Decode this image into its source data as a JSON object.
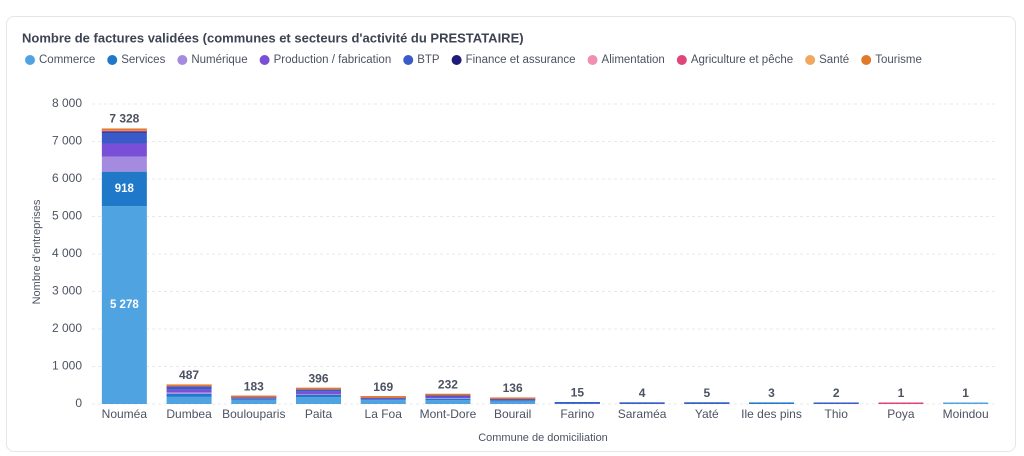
{
  "chart_data": {
    "type": "stacked-bar",
    "title": "Nombre de factures validées (communes et secteurs d'activité du PRESTATAIRE)",
    "xlabel": "Commune de domiciliation",
    "ylabel": "Nombre d'entreprises",
    "categories": [
      "Nouméa",
      "Dumbea",
      "Boulouparis",
      "Paita",
      "La Foa",
      "Mont-Dore",
      "Bourail",
      "Farino",
      "Saraméa",
      "Yaté",
      "Ile des pins",
      "Thio",
      "Poya",
      "Moindou"
    ],
    "series": [
      {
        "name": "Commerce",
        "color": "#4fa3e0",
        "values": [
          5278,
          190,
          110,
          180,
          100,
          100,
          70,
          8,
          2,
          3,
          2,
          1,
          0,
          1
        ],
        "value_labels": [
          "5 278",
          null,
          null,
          null,
          null,
          null,
          null,
          null,
          null,
          null,
          null,
          null,
          null,
          null
        ]
      },
      {
        "name": "Services",
        "color": "#1f78c8",
        "values": [
          918,
          80,
          30,
          60,
          25,
          40,
          25,
          3,
          1,
          1,
          1,
          0,
          0,
          0
        ],
        "value_labels": [
          "918",
          null,
          null,
          null,
          null,
          null,
          null,
          null,
          null,
          null,
          null,
          null,
          null,
          null
        ]
      },
      {
        "name": "Numérique",
        "color": "#a58be0",
        "values": [
          400,
          40,
          10,
          30,
          10,
          20,
          8,
          1,
          0,
          0,
          0,
          0,
          0,
          0
        ]
      },
      {
        "name": "Production / fabrication",
        "color": "#7a4fd8",
        "values": [
          350,
          70,
          15,
          60,
          15,
          35,
          15,
          1,
          0,
          0,
          0,
          0,
          0,
          0
        ]
      },
      {
        "name": "BTP",
        "color": "#3a5bc7",
        "values": [
          290,
          80,
          12,
          50,
          13,
          30,
          12,
          2,
          1,
          1,
          0,
          1,
          0,
          0
        ]
      },
      {
        "name": "Finance et assurance",
        "color": "#1e1b7a",
        "values": [
          30,
          10,
          2,
          6,
          2,
          3,
          2,
          0,
          0,
          0,
          0,
          0,
          0,
          0
        ]
      },
      {
        "name": "Alimentation",
        "color": "#f08fb0",
        "values": [
          10,
          3,
          1,
          2,
          1,
          1,
          1,
          0,
          0,
          0,
          0,
          0,
          0,
          0
        ]
      },
      {
        "name": "Agriculture et pêche",
        "color": "#e0457a",
        "values": [
          12,
          4,
          1,
          3,
          1,
          1,
          1,
          0,
          0,
          0,
          0,
          0,
          1,
          0
        ]
      },
      {
        "name": "Santé",
        "color": "#f0a860",
        "values": [
          20,
          5,
          1,
          3,
          1,
          1,
          1,
          0,
          0,
          0,
          0,
          0,
          0,
          0
        ]
      },
      {
        "name": "Tourisme",
        "color": "#e07a2a",
        "values": [
          20,
          5,
          1,
          2,
          1,
          1,
          1,
          0,
          0,
          0,
          0,
          0,
          0,
          0
        ]
      }
    ],
    "totals": {
      "values": [
        7328,
        487,
        183,
        396,
        169,
        232,
        136,
        15,
        4,
        5,
        3,
        2,
        1,
        1
      ],
      "value_labels": [
        "7 328",
        "487",
        "183",
        "396",
        "169",
        "232",
        "136",
        "15",
        "4",
        "5",
        "3",
        "2",
        "1",
        "1"
      ]
    },
    "ylim": [
      0,
      8000
    ],
    "yticks": [
      0,
      {
        "value": 1000,
        "label": "1 000"
      },
      {
        "value": 2000,
        "label": "2 000"
      },
      {
        "value": 3000,
        "label": "3 000"
      },
      {
        "value": 4000,
        "label": "4 000"
      },
      {
        "value": 5000,
        "label": "5 000"
      },
      {
        "value": 6000,
        "label": "6 000"
      },
      {
        "value": 7000,
        "label": "7 000"
      },
      {
        "value": 8000,
        "label": "8 000"
      }
    ],
    "grid": true
  }
}
